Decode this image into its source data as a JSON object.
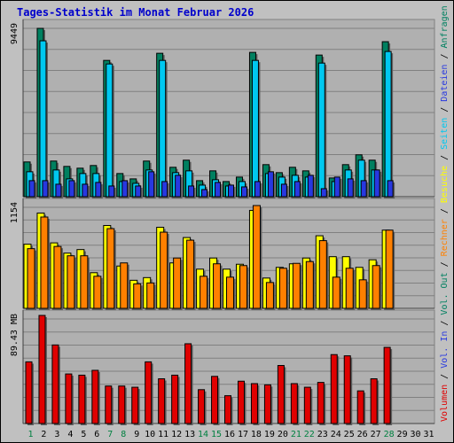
{
  "title": "Tages-Statistik im Monat Februar 2026",
  "colors": {
    "anfragen": "#008060",
    "dateien": "#00c8f0",
    "seiten": "#2838e0",
    "besuche": "#ffff00",
    "rechner": "#ff8000",
    "volumen": "#e00000",
    "background": "#c0c0c0",
    "plot_background": "#b0b0b0",
    "title": "#0000cc",
    "day_normal": "#000000",
    "day_weekend": "#008040"
  },
  "legend": {
    "anfragen": "Anfragen",
    "dateien": "Dateien",
    "seiten": "Seiten",
    "besuche": "Besuche",
    "rechner": "Rechner",
    "vol_out": "Vol. Out",
    "vol_in": "Vol. In",
    "volumen": "Volumen",
    "separator": "/"
  },
  "chart_data": [
    {
      "type": "bar",
      "name": "hits",
      "max_label": "9449",
      "ymax": 9449,
      "categories": [
        "1",
        "2",
        "3",
        "4",
        "5",
        "6",
        "7",
        "8",
        "9",
        "10",
        "11",
        "12",
        "13",
        "14",
        "15",
        "16",
        "17",
        "18",
        "19",
        "20",
        "21",
        "22",
        "23",
        "24",
        "25",
        "26",
        "27",
        "28",
        "29",
        "30",
        "31"
      ],
      "series": [
        {
          "name": "Anfragen",
          "values": [
            1950,
            9449,
            2000,
            1700,
            1600,
            1750,
            7650,
            1300,
            1000,
            2000,
            8050,
            1650,
            2050,
            900,
            1450,
            850,
            1100,
            8100,
            1800,
            1350,
            1650,
            1450,
            7950,
            1050,
            1800,
            2350,
            2050,
            8700,
            0,
            0,
            0
          ]
        },
        {
          "name": "Dateien",
          "values": [
            1400,
            8750,
            1500,
            1000,
            1300,
            1300,
            7450,
            850,
            750,
            1500,
            7650,
            1350,
            1450,
            650,
            950,
            600,
            850,
            7650,
            1300,
            1100,
            1200,
            1100,
            7500,
            850,
            1500,
            2050,
            1500,
            8150,
            0,
            0,
            0
          ]
        },
        {
          "name": "Seiten",
          "values": [
            900,
            900,
            700,
            900,
            700,
            800,
            600,
            900,
            600,
            1400,
            850,
            1200,
            600,
            400,
            800,
            650,
            550,
            850,
            1400,
            700,
            850,
            1200,
            450,
            1100,
            1000,
            900,
            1500,
            900,
            0,
            0,
            0
          ]
        }
      ]
    },
    {
      "type": "bar",
      "name": "visits",
      "max_label": "1154",
      "ymax": 1154,
      "categories": [
        "1",
        "2",
        "3",
        "4",
        "5",
        "6",
        "7",
        "8",
        "9",
        "10",
        "11",
        "12",
        "13",
        "14",
        "15",
        "16",
        "17",
        "18",
        "19",
        "20",
        "21",
        "22",
        "23",
        "24",
        "25",
        "26",
        "27",
        "28",
        "29",
        "30",
        "31"
      ],
      "series": [
        {
          "name": "Besuche",
          "values": [
            720,
            1070,
            735,
            620,
            660,
            400,
            930,
            475,
            315,
            345,
            910,
            510,
            795,
            440,
            565,
            440,
            495,
            1100,
            340,
            460,
            500,
            565,
            815,
            580,
            580,
            460,
            545,
            878,
            0,
            0,
            0
          ]
        },
        {
          "name": "Rechner",
          "values": [
            670,
            1025,
            695,
            590,
            590,
            360,
            895,
            510,
            275,
            285,
            855,
            565,
            765,
            360,
            500,
            350,
            480,
            1154,
            290,
            450,
            505,
            525,
            760,
            350,
            450,
            320,
            480,
            878,
            0,
            0,
            0
          ]
        }
      ]
    },
    {
      "type": "bar",
      "name": "volume",
      "max_label": "89.43 MB",
      "ymax": 89.43,
      "categories": [
        "1",
        "2",
        "3",
        "4",
        "5",
        "6",
        "7",
        "8",
        "9",
        "10",
        "11",
        "12",
        "13",
        "14",
        "15",
        "16",
        "17",
        "18",
        "19",
        "20",
        "21",
        "22",
        "23",
        "24",
        "25",
        "26",
        "27",
        "28",
        "29",
        "30",
        "31"
      ],
      "series": [
        {
          "name": "Volumen",
          "values": [
            51,
            89.43,
            65,
            41,
            40,
            44,
            31,
            31,
            30,
            51,
            37,
            40,
            66,
            28,
            39,
            23,
            35,
            33,
            32,
            48,
            33,
            30,
            34,
            57,
            56,
            27,
            37,
            63,
            0,
            0,
            0
          ]
        }
      ]
    }
  ],
  "weekend_days": [
    1,
    7,
    8,
    14,
    15,
    21,
    22,
    28
  ]
}
